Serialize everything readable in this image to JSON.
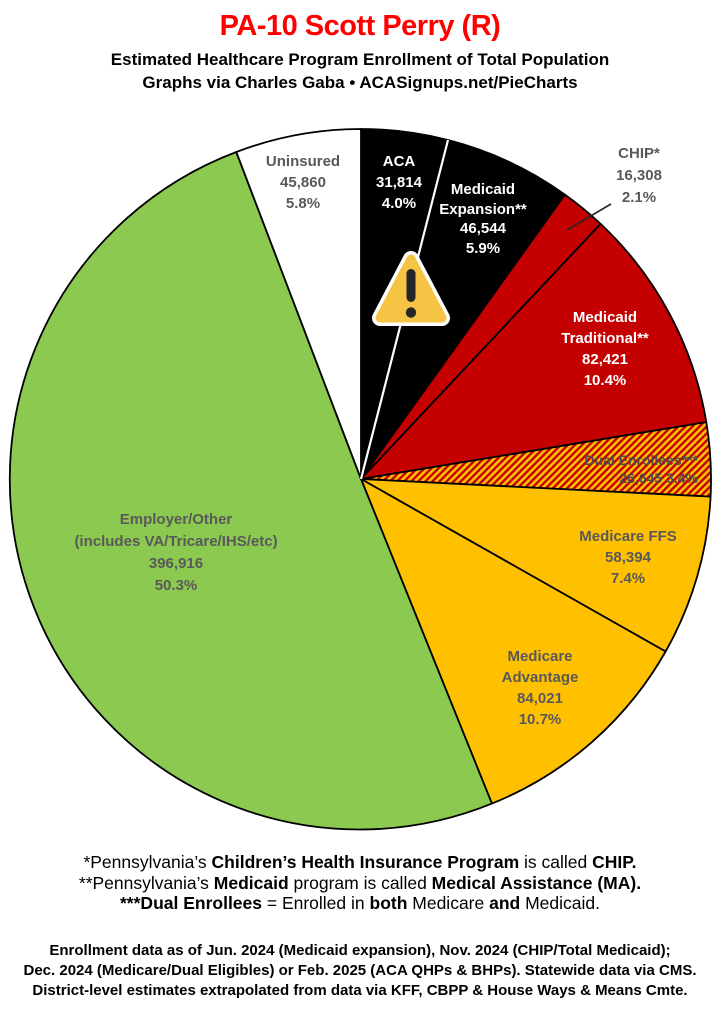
{
  "header": {
    "title": "PA-10 Scott Perry (R)",
    "subtitle1": "Estimated Healthcare Program Enrollment of Total Population",
    "subtitle2": "Graphs via Charles Gaba   •   ACASignups.net/PieCharts"
  },
  "theme": {
    "title_red": "#FF0000",
    "slice_black": "#000000",
    "slice_red": "#C40000",
    "slice_gold": "#FFC000",
    "slice_green": "#8CC950",
    "slice_white": "#FFFFFF",
    "label_gray": "#595959",
    "warning_fill": "#F6C445",
    "warning_glyph": "#262626",
    "leader_line": "#262626"
  },
  "chart_data": {
    "type": "pie",
    "title": "Estimated Healthcare Program Enrollment of Total Population",
    "units": "people",
    "start_angle_deg": 0,
    "direction": "clockwise",
    "legend_position": "labels-on-slices",
    "segments": [
      {
        "id": "aca",
        "name": "ACA",
        "value": 31814,
        "pct": 4.0,
        "color": "#000000",
        "label_lines": [
          "ACA",
          "31,814",
          "4.0%"
        ],
        "label_color": "#FFFFFF"
      },
      {
        "id": "medicaid-expansion",
        "name": "Medicaid Expansion**",
        "value": 46544,
        "pct": 5.9,
        "color": "#000000",
        "label_lines": [
          "Medicaid",
          "Expansion**",
          "46,544",
          "5.9%"
        ],
        "label_color": "#FFFFFF"
      },
      {
        "id": "chip",
        "name": "CHIP*",
        "value": 16308,
        "pct": 2.1,
        "color": "#C40000",
        "label_lines": [
          "CHIP*",
          "16,308",
          "2.1%"
        ],
        "label_color": "#595959"
      },
      {
        "id": "medicaid-traditional",
        "name": "Medicaid Traditional**",
        "value": 82421,
        "pct": 10.4,
        "color": "#C40000",
        "label_lines": [
          "Medicaid",
          "Traditional**",
          "82,421",
          "10.4%"
        ],
        "label_color": "#FFFFFF"
      },
      {
        "id": "dual-enrollees",
        "name": "Dual Enrollees***",
        "value": 26645,
        "pct": 3.4,
        "color": "hatch",
        "label_lines": [
          "Dual Enrollees***",
          "26,645 3.4%"
        ],
        "label_color": "#4D4D4D"
      },
      {
        "id": "medicare-ffs",
        "name": "Medicare FFS",
        "value": 58394,
        "pct": 7.4,
        "color": "#FFC000",
        "label_lines": [
          "Medicare FFS",
          "58,394",
          "7.4%"
        ],
        "label_color": "#595959"
      },
      {
        "id": "medicare-advantage",
        "name": "Medicare Advantage",
        "value": 84021,
        "pct": 10.7,
        "color": "#FFC000",
        "label_lines": [
          "Medicare",
          "Advantage",
          "84,021",
          "10.7%"
        ],
        "label_color": "#595959"
      },
      {
        "id": "employer-other",
        "name": "Employer/Other (includes VA/Tricare/IHS/etc)",
        "value": 396916,
        "pct": 50.3,
        "color": "#8CC950",
        "label_lines": [
          "Employer/Other",
          "(includes VA/Tricare/IHS/etc)",
          "396,916",
          "50.3%"
        ],
        "label_color": "#595959"
      },
      {
        "id": "uninsured",
        "name": "Uninsured",
        "value": 45860,
        "pct": 5.8,
        "color": "#FFFFFF",
        "label_lines": [
          "Uninsured",
          "45,860",
          "5.8%"
        ],
        "label_color": "#595959"
      }
    ]
  },
  "footnotes": {
    "line1": [
      [
        "*Pennsylvania’s ",
        false
      ],
      [
        "Children’s Health Insurance Program",
        true
      ],
      [
        " is called ",
        false
      ],
      [
        "CHIP.",
        true
      ]
    ],
    "line2": [
      [
        "**Pennsylvania’s ",
        false
      ],
      [
        "Medicaid",
        true
      ],
      [
        " program is called ",
        false
      ],
      [
        "Medical Assistance (MA).",
        true
      ]
    ],
    "line3": [
      [
        "***Dual Enrollees",
        true
      ],
      [
        " = Enrolled in ",
        false
      ],
      [
        "both",
        true
      ],
      [
        " Medicare ",
        false
      ],
      [
        "and",
        true
      ],
      [
        " Medicaid.",
        false
      ]
    ]
  },
  "source": {
    "line1": "Enrollment data as of Jun. 2024 (Medicaid expansion), Nov. 2024 (CHIP/Total Medicaid);",
    "line2": "Dec. 2024 (Medicare/Dual Eligibles) or Feb. 2025 (ACA QHPs & BHPs). Statewide data via CMS.",
    "line3": "District-level estimates extrapolated from data via KFF, CBPP & House Ways & Means Cmte."
  }
}
